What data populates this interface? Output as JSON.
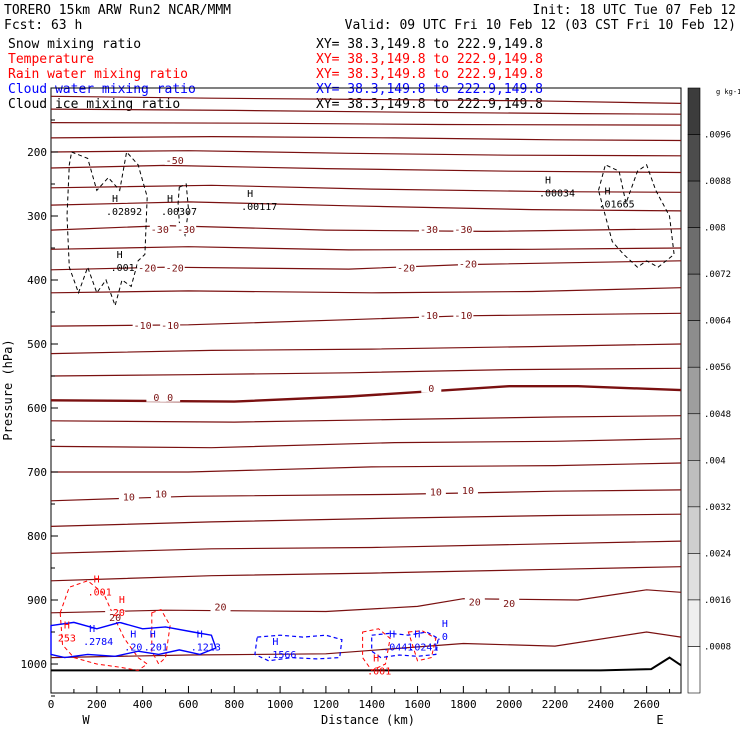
{
  "header": {
    "model": "TORERO  15km ARW   Run2    NCAR/MMM",
    "fcst": "Fcst:   63 h",
    "init": "Init: 18 UTC Tue 07 Feb 12",
    "valid": "Valid: 09 UTC Fri 10 Feb 12 (03 CST Fri 10 Feb 12)"
  },
  "fields": [
    {
      "name": "Snow mixing ratio",
      "color": "#000000",
      "xy": "XY=  38.3,149.8 to 222.9,149.8"
    },
    {
      "name": "Temperature",
      "color": "#ff0000",
      "xy": "XY=  38.3,149.8 to 222.9,149.8"
    },
    {
      "name": "Rain water mixing ratio",
      "color": "#ff0000",
      "xy": "XY=  38.3,149.8 to 222.9,149.8"
    },
    {
      "name": "Cloud water mixing ratio",
      "color": "#0000ff",
      "xy": "XY=  38.3,149.8 to 222.9,149.8"
    },
    {
      "name": "Cloud ice mixing ratio",
      "color": "#000000",
      "xy": "XY=  38.3,149.8 to 222.9,149.8"
    }
  ],
  "colorbar": {
    "unit": "g kg-1",
    "ticks": [
      ".0096",
      ".0088",
      ".008",
      ".0072",
      ".0064",
      ".0056",
      ".0048",
      ".004",
      ".0032",
      ".0024",
      ".0016",
      ".0008"
    ]
  },
  "chart_data": {
    "type": "contour",
    "xlabel": "Distance (km)",
    "ylabel": "Pressure (hPa)",
    "xlim": [
      0,
      2750
    ],
    "ylim": [
      100,
      1050
    ],
    "x_ticks": [
      0,
      200,
      400,
      600,
      800,
      1000,
      1200,
      1400,
      1600,
      1800,
      2000,
      2200,
      2400,
      2600
    ],
    "y_ticks": [
      200,
      300,
      400,
      500,
      600,
      700,
      800,
      900,
      1000
    ],
    "end_labels": {
      "left": "W",
      "right": "E"
    },
    "temperature_contours_C": [
      -50,
      -30,
      -20,
      -10,
      0,
      10,
      20
    ],
    "temperature_labels": [
      {
        "text": "-50",
        "x": 540,
        "p": 214
      },
      {
        "text": "-30",
        "x": 475,
        "p": 322
      },
      {
        "text": "-30",
        "x": 590,
        "p": 322
      },
      {
        "text": "-30",
        "x": 1650,
        "p": 322
      },
      {
        "text": "-30",
        "x": 1800,
        "p": 322
      },
      {
        "text": "-20",
        "x": 420,
        "p": 382
      },
      {
        "text": "-20",
        "x": 540,
        "p": 382
      },
      {
        "text": "-20",
        "x": 1550,
        "p": 382
      },
      {
        "text": "-20",
        "x": 1820,
        "p": 376
      },
      {
        "text": "-10",
        "x": 400,
        "p": 472
      },
      {
        "text": "-10",
        "x": 520,
        "p": 472
      },
      {
        "text": "-10",
        "x": 1650,
        "p": 456
      },
      {
        "text": "-10",
        "x": 1800,
        "p": 456
      },
      {
        "text": "0",
        "x": 460,
        "p": 584
      },
      {
        "text": "0",
        "x": 520,
        "p": 584
      },
      {
        "text": "0",
        "x": 1660,
        "p": 570
      },
      {
        "text": "10",
        "x": 340,
        "p": 740
      },
      {
        "text": "10",
        "x": 480,
        "p": 735
      },
      {
        "text": "10",
        "x": 1680,
        "p": 732
      },
      {
        "text": "10",
        "x": 1820,
        "p": 730
      },
      {
        "text": "20",
        "x": 280,
        "p": 928
      },
      {
        "text": "20",
        "x": 740,
        "p": 912
      },
      {
        "text": "20",
        "x": 1850,
        "p": 904
      },
      {
        "text": "20",
        "x": 2000,
        "p": 906
      }
    ],
    "maxima_labels": [
      {
        "text": ".02892",
        "x": 240,
        "p": 294,
        "color": "#000000"
      },
      {
        "text": ".00307",
        "x": 480,
        "p": 294,
        "color": "#000000"
      },
      {
        "text": ".00117",
        "x": 830,
        "p": 286,
        "color": "#000000"
      },
      {
        "text": ".00034",
        "x": 2130,
        "p": 265,
        "color": "#000000"
      },
      {
        "text": ".01665",
        "x": 2390,
        "p": 282,
        "color": "#000000"
      },
      {
        "text": ".001",
        "x": 260,
        "p": 381,
        "color": "#000000"
      },
      {
        "text": ".001",
        "x": 160,
        "p": 888,
        "color": "#ff0000"
      },
      {
        "text": ".001",
        "x": 1380,
        "p": 1012,
        "color": "#ff0000"
      },
      {
        "text": ".2784",
        "x": 140,
        "p": 966,
        "color": "#0000ff"
      },
      {
        "text": ".20",
        "x": 320,
        "p": 974,
        "color": "#0000ff"
      },
      {
        "text": ".201",
        "x": 405,
        "p": 974,
        "color": "#0000ff"
      },
      {
        "text": ".1213",
        "x": 610,
        "p": 974,
        "color": "#0000ff"
      },
      {
        "text": ".1566",
        "x": 940,
        "p": 986,
        "color": "#0000ff"
      },
      {
        "text": ".0441",
        "x": 1450,
        "p": 974,
        "color": "#0000ff"
      },
      {
        "text": ".0241",
        "x": 1560,
        "p": 974,
        "color": "#0000ff"
      },
      {
        "text": "253",
        "x": 30,
        "p": 960,
        "color": "#ff0000"
      },
      {
        "text": "20",
        "x": 270,
        "p": 920,
        "color": "#ff0000"
      },
      {
        "text": ".0",
        "x": 1680,
        "p": 958,
        "color": "#0000ff"
      }
    ]
  }
}
